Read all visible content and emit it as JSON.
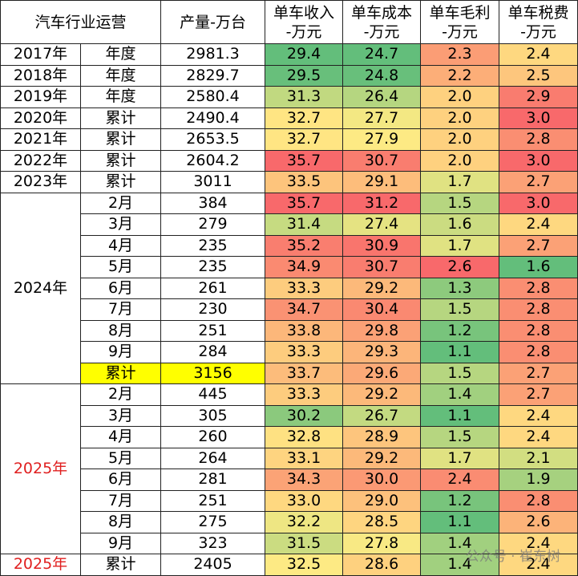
{
  "header": {
    "title": "汽车行业运营",
    "columns": [
      [
        "产量-万台"
      ],
      [
        "单车收入",
        "-万元"
      ],
      [
        "单车成本",
        "-万元"
      ],
      [
        "单车毛利",
        "-万元"
      ],
      [
        "单车税费",
        "-万元"
      ]
    ]
  },
  "groups": [
    {
      "label": "2017年",
      "rows": [
        {
          "period": "年度",
          "cells": [
            "2981.3",
            "29.4",
            "24.7",
            "2.3",
            "2.4"
          ]
        }
      ]
    },
    {
      "label": "2018年",
      "rows": [
        {
          "period": "年度",
          "cells": [
            "2829.7",
            "29.5",
            "24.8",
            "2.2",
            "2.5"
          ]
        }
      ]
    },
    {
      "label": "2019年",
      "rows": [
        {
          "period": "年度",
          "cells": [
            "2580.4",
            "31.3",
            "26.4",
            "2.0",
            "2.9"
          ]
        }
      ]
    },
    {
      "label": "2020年",
      "rows": [
        {
          "period": "累计",
          "cells": [
            "2490.4",
            "32.7",
            "27.7",
            "2.0",
            "3.0"
          ]
        }
      ]
    },
    {
      "label": "2021年",
      "rows": [
        {
          "period": "累计",
          "cells": [
            "2653.5",
            "32.7",
            "27.9",
            "2.0",
            "2.8"
          ]
        }
      ]
    },
    {
      "label": "2022年",
      "rows": [
        {
          "period": "累计",
          "cells": [
            "2604.2",
            "35.7",
            "30.7",
            "2.0",
            "3.0"
          ]
        }
      ]
    },
    {
      "label": "2023年",
      "rows": [
        {
          "period": "累计",
          "cells": [
            "3011",
            "33.5",
            "29.1",
            "1.7",
            "2.7"
          ]
        }
      ]
    },
    {
      "label": "2024年",
      "rows": [
        {
          "period": "2月",
          "cells": [
            "384",
            "35.7",
            "31.2",
            "1.5",
            "3.0"
          ]
        },
        {
          "period": "3月",
          "cells": [
            "279",
            "31.4",
            "27.4",
            "1.6",
            "2.4"
          ]
        },
        {
          "period": "4月",
          "cells": [
            "235",
            "35.2",
            "30.9",
            "1.7",
            "2.7"
          ]
        },
        {
          "period": "5月",
          "cells": [
            "235",
            "34.9",
            "30.7",
            "2.6",
            "1.6"
          ]
        },
        {
          "period": "6月",
          "cells": [
            "261",
            "33.3",
            "29.2",
            "1.3",
            "2.8"
          ]
        },
        {
          "period": "7月",
          "cells": [
            "230",
            "34.7",
            "30.4",
            "1.5",
            "2.8"
          ]
        },
        {
          "period": "8月",
          "cells": [
            "251",
            "33.8",
            "29.8",
            "1.2",
            "2.8"
          ]
        },
        {
          "period": "9月",
          "cells": [
            "284",
            "33.3",
            "29.3",
            "1.1",
            "2.8"
          ]
        },
        {
          "period": "累计",
          "cells": [
            "3156",
            "33.7",
            "29.6",
            "1.5",
            "2.7"
          ],
          "highlight": "#ffff00"
        }
      ]
    },
    {
      "label": "2025年",
      "label_color": "#e02020",
      "rows": [
        {
          "period": "2月",
          "cells": [
            "445",
            "33.3",
            "29.2",
            "1.4",
            "2.7"
          ]
        },
        {
          "period": "3月",
          "cells": [
            "305",
            "30.2",
            "26.7",
            "1.1",
            "2.4"
          ]
        },
        {
          "period": "4月",
          "cells": [
            "260",
            "32.8",
            "28.9",
            "1.5",
            "2.4"
          ]
        },
        {
          "period": "5月",
          "cells": [
            "264",
            "33.1",
            "29.2",
            "1.7",
            "2.1"
          ]
        },
        {
          "period": "6月",
          "cells": [
            "281",
            "34.3",
            "30.0",
            "2.4",
            "1.9"
          ]
        },
        {
          "period": "7月",
          "cells": [
            "251",
            "33.0",
            "29.0",
            "1.2",
            "2.8"
          ]
        },
        {
          "period": "8月",
          "cells": [
            "275",
            "32.2",
            "28.5",
            "1.1",
            "2.6"
          ]
        },
        {
          "period": "9月",
          "cells": [
            "323",
            "31.5",
            "27.8",
            "1.4",
            "2.4"
          ]
        }
      ]
    },
    {
      "label": "2025年",
      "label_color": "#e02020",
      "rows": [
        {
          "period": "累计",
          "cells": [
            "2405",
            "32.5",
            "28.6",
            "1.4",
            "2.4"
          ]
        }
      ]
    }
  ],
  "watermark": "公众号 · 崔东树"
}
